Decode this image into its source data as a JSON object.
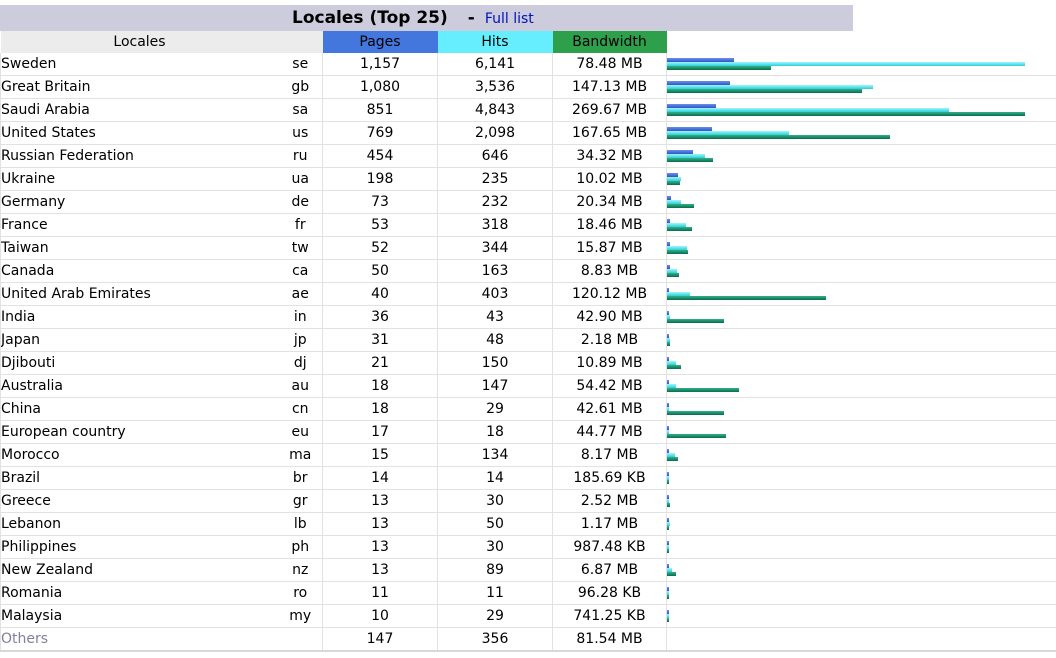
{
  "header": {
    "title": "Locales (Top 25)",
    "separator": "-",
    "full_list_link": "Full list"
  },
  "columns": {
    "locales": "Locales",
    "pages": "Pages",
    "hits": "Hits",
    "bandwidth": "Bandwidth"
  },
  "colors": {
    "pages": "#4477dd",
    "hits": "#66eeff",
    "bandwidth": "#2ea04c"
  },
  "rows": [
    {
      "name": "Sweden",
      "code": "se",
      "pages": "1,157",
      "hits": "6,141",
      "bandwidth": "78.48 MB",
      "p": 1157,
      "h": 6141,
      "b": 78.48
    },
    {
      "name": "Great Britain",
      "code": "gb",
      "pages": "1,080",
      "hits": "3,536",
      "bandwidth": "147.13 MB",
      "p": 1080,
      "h": 3536,
      "b": 147.13
    },
    {
      "name": "Saudi Arabia",
      "code": "sa",
      "pages": "851",
      "hits": "4,843",
      "bandwidth": "269.67 MB",
      "p": 851,
      "h": 4843,
      "b": 269.67
    },
    {
      "name": "United States",
      "code": "us",
      "pages": "769",
      "hits": "2,098",
      "bandwidth": "167.65 MB",
      "p": 769,
      "h": 2098,
      "b": 167.65
    },
    {
      "name": "Russian Federation",
      "code": "ru",
      "pages": "454",
      "hits": "646",
      "bandwidth": "34.32 MB",
      "p": 454,
      "h": 646,
      "b": 34.32
    },
    {
      "name": "Ukraine",
      "code": "ua",
      "pages": "198",
      "hits": "235",
      "bandwidth": "10.02 MB",
      "p": 198,
      "h": 235,
      "b": 10.02
    },
    {
      "name": "Germany",
      "code": "de",
      "pages": "73",
      "hits": "232",
      "bandwidth": "20.34 MB",
      "p": 73,
      "h": 232,
      "b": 20.34
    },
    {
      "name": "France",
      "code": "fr",
      "pages": "53",
      "hits": "318",
      "bandwidth": "18.46 MB",
      "p": 53,
      "h": 318,
      "b": 18.46
    },
    {
      "name": "Taiwan",
      "code": "tw",
      "pages": "52",
      "hits": "344",
      "bandwidth": "15.87 MB",
      "p": 52,
      "h": 344,
      "b": 15.87
    },
    {
      "name": "Canada",
      "code": "ca",
      "pages": "50",
      "hits": "163",
      "bandwidth": "8.83 MB",
      "p": 50,
      "h": 163,
      "b": 8.83
    },
    {
      "name": "United Arab Emirates",
      "code": "ae",
      "pages": "40",
      "hits": "403",
      "bandwidth": "120.12 MB",
      "p": 40,
      "h": 403,
      "b": 120.12
    },
    {
      "name": "India",
      "code": "in",
      "pages": "36",
      "hits": "43",
      "bandwidth": "42.90 MB",
      "p": 36,
      "h": 43,
      "b": 42.9
    },
    {
      "name": "Japan",
      "code": "jp",
      "pages": "31",
      "hits": "48",
      "bandwidth": "2.18 MB",
      "p": 31,
      "h": 48,
      "b": 2.18
    },
    {
      "name": "Djibouti",
      "code": "dj",
      "pages": "21",
      "hits": "150",
      "bandwidth": "10.89 MB",
      "p": 21,
      "h": 150,
      "b": 10.89
    },
    {
      "name": "Australia",
      "code": "au",
      "pages": "18",
      "hits": "147",
      "bandwidth": "54.42 MB",
      "p": 18,
      "h": 147,
      "b": 54.42
    },
    {
      "name": "China",
      "code": "cn",
      "pages": "18",
      "hits": "29",
      "bandwidth": "42.61 MB",
      "p": 18,
      "h": 29,
      "b": 42.61
    },
    {
      "name": "European country",
      "code": "eu",
      "pages": "17",
      "hits": "18",
      "bandwidth": "44.77 MB",
      "p": 17,
      "h": 18,
      "b": 44.77
    },
    {
      "name": "Morocco",
      "code": "ma",
      "pages": "15",
      "hits": "134",
      "bandwidth": "8.17 MB",
      "p": 15,
      "h": 134,
      "b": 8.17
    },
    {
      "name": "Brazil",
      "code": "br",
      "pages": "14",
      "hits": "14",
      "bandwidth": "185.69 KB",
      "p": 14,
      "h": 14,
      "b": 0.18
    },
    {
      "name": "Greece",
      "code": "gr",
      "pages": "13",
      "hits": "30",
      "bandwidth": "2.52 MB",
      "p": 13,
      "h": 30,
      "b": 2.52
    },
    {
      "name": "Lebanon",
      "code": "lb",
      "pages": "13",
      "hits": "50",
      "bandwidth": "1.17 MB",
      "p": 13,
      "h": 50,
      "b": 1.17
    },
    {
      "name": "Philippines",
      "code": "ph",
      "pages": "13",
      "hits": "30",
      "bandwidth": "987.48 KB",
      "p": 13,
      "h": 30,
      "b": 0.96
    },
    {
      "name": "New Zealand",
      "code": "nz",
      "pages": "13",
      "hits": "89",
      "bandwidth": "6.87 MB",
      "p": 13,
      "h": 89,
      "b": 6.87
    },
    {
      "name": "Romania",
      "code": "ro",
      "pages": "11",
      "hits": "11",
      "bandwidth": "96.28 KB",
      "p": 11,
      "h": 11,
      "b": 0.09
    },
    {
      "name": "Malaysia",
      "code": "my",
      "pages": "10",
      "hits": "29",
      "bandwidth": "741.25 KB",
      "p": 10,
      "h": 29,
      "b": 0.72
    }
  ],
  "others": {
    "name": "Others",
    "pages": "147",
    "hits": "356",
    "bandwidth": "81.54 MB"
  }
}
